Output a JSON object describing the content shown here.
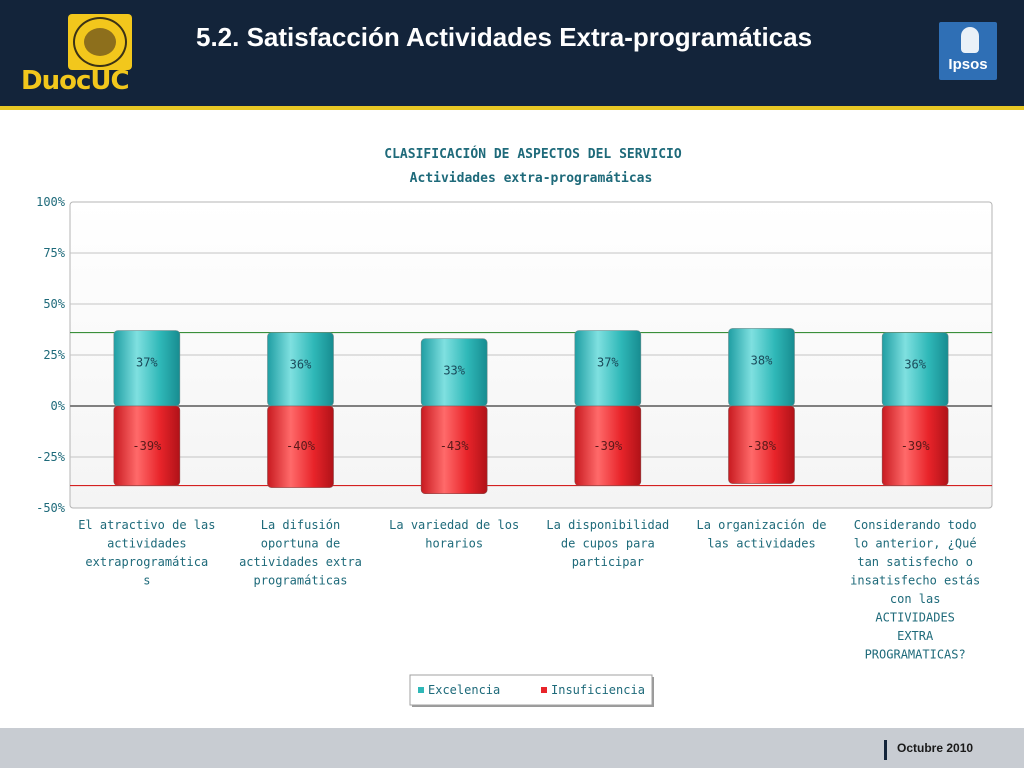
{
  "header": {
    "title": "5.2. Satisfacción Actividades Extra-programáticas",
    "logo_left_text": "DuocUC",
    "logo_right_text": "Ipsos"
  },
  "footer": {
    "date": "Octubre 2010"
  },
  "chart_data": {
    "type": "bar",
    "title": "CLASIFICACIÓN DE ASPECTOS DEL SERVICIO",
    "subtitle": "Actividades extra-programáticas",
    "categories": [
      [
        "El atractivo de las",
        "actividades",
        "extraprogramática",
        "s"
      ],
      [
        "La difusión",
        "oportuna de",
        "actividades extra",
        "programáticas"
      ],
      [
        "La variedad de los",
        "horarios"
      ],
      [
        "La disponibilidad",
        "de cupos para",
        "participar"
      ],
      [
        "La organización de",
        "las actividades"
      ],
      [
        "Considerando todo",
        "lo anterior, ¿Qué",
        "tan satisfecho o",
        "insatisfecho estás",
        "con las",
        "ACTIVIDADES",
        "EXTRA",
        "PROGRAMATICAS?"
      ]
    ],
    "series": [
      {
        "name": "Excelencia",
        "color": "#2fb8b8",
        "values": [
          37,
          36,
          33,
          37,
          38,
          36
        ],
        "labels": [
          "37%",
          "36%",
          "33%",
          "37%",
          "38%",
          "36%"
        ]
      },
      {
        "name": "Insuficiencia",
        "color": "#e8242a",
        "values": [
          -39,
          -40,
          -43,
          -39,
          -38,
          -39
        ],
        "labels": [
          "-39%",
          "-40%",
          "-43%",
          "-39%",
          "-38%",
          "-39%"
        ]
      }
    ],
    "ylim": [
      -50,
      100
    ],
    "yticks": [
      {
        "value": 100,
        "label": "100%"
      },
      {
        "value": 75,
        "label": "75%"
      },
      {
        "value": 50,
        "label": "50%"
      },
      {
        "value": 25,
        "label": "25%"
      },
      {
        "value": 0,
        "label": "0%"
      },
      {
        "value": -25,
        "label": "-25%"
      },
      {
        "value": -50,
        "label": "-50%"
      }
    ],
    "reference_lines": [
      {
        "value": 36,
        "color": "#3a8f3a"
      },
      {
        "value": -39,
        "color": "#d42020"
      }
    ],
    "grid": true,
    "legend_position": "bottom"
  }
}
